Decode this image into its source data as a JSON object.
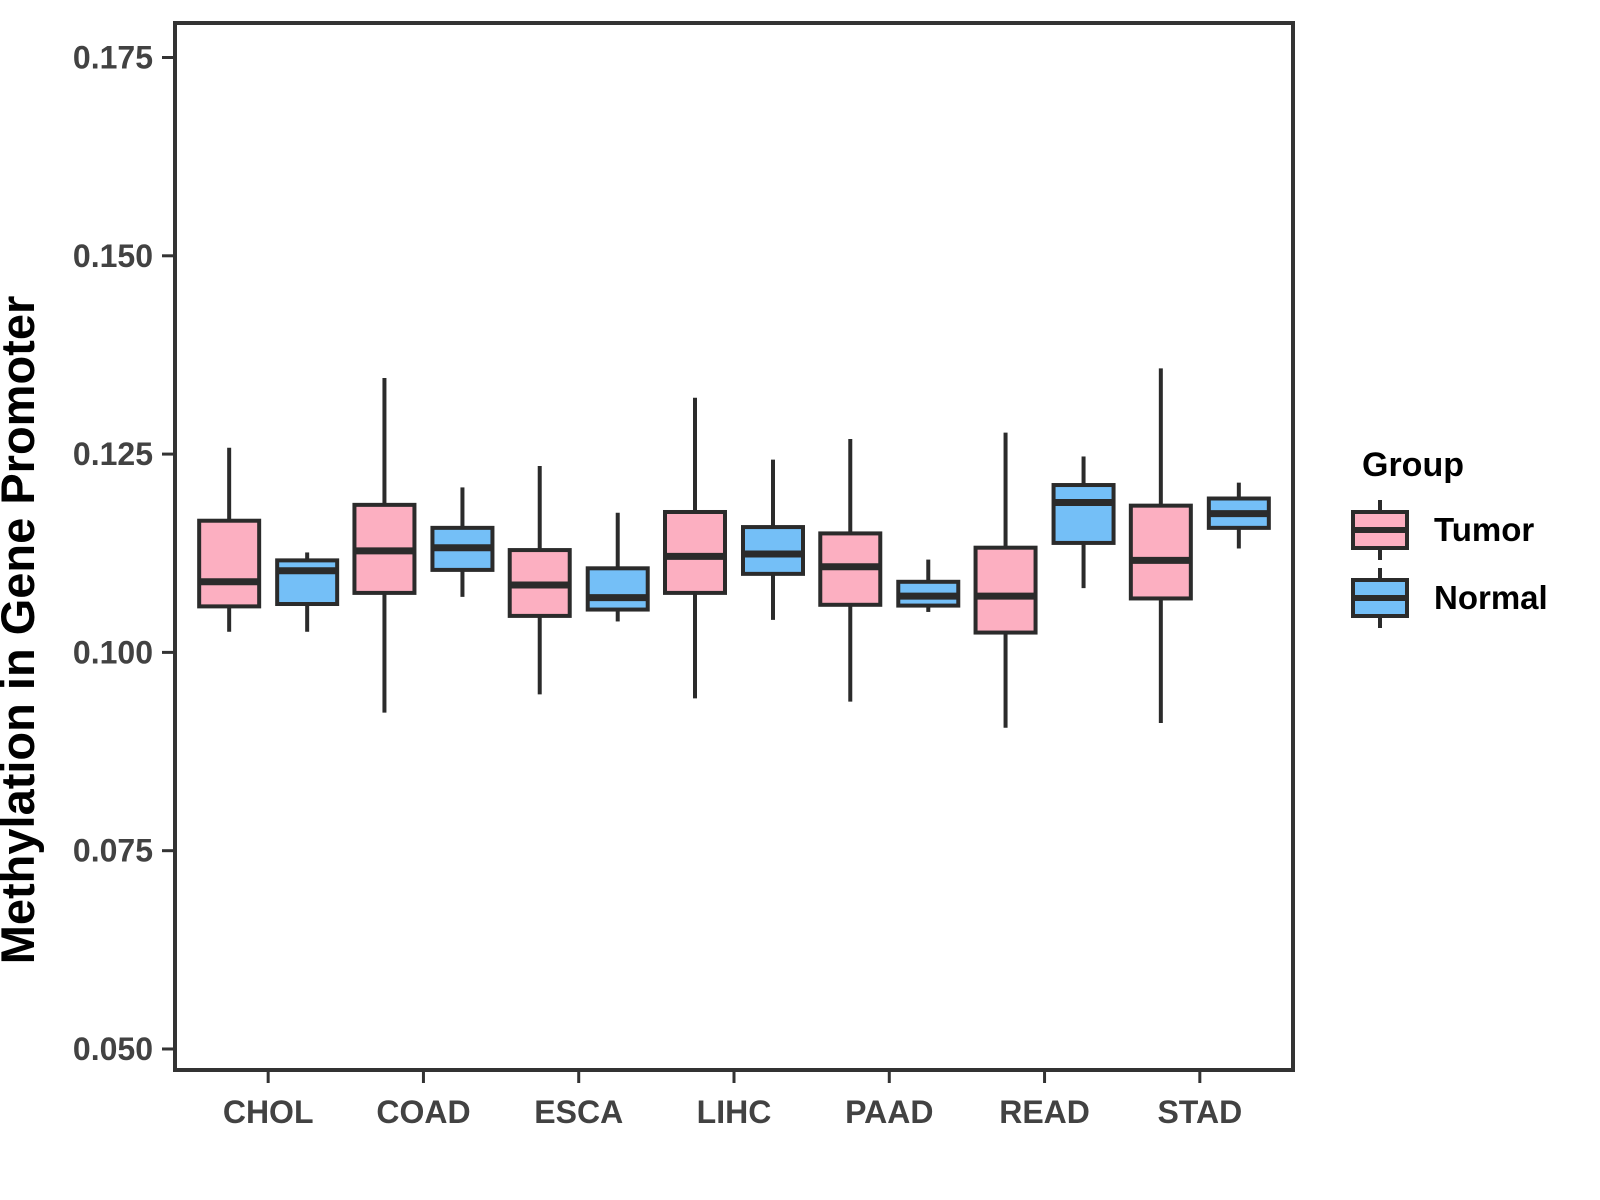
{
  "chart_data": {
    "type": "boxplot",
    "ylabel": "Methylation in Gene Promoter",
    "xlabel": "",
    "categories": [
      "CHOL",
      "COAD",
      "ESCA",
      "LIHC",
      "PAAD",
      "READ",
      "STAD"
    ],
    "y_ticks": [
      "0.050",
      "0.075",
      "0.100",
      "0.125",
      "0.150",
      "0.175"
    ],
    "y_tick_values": [
      0.05,
      0.075,
      0.1,
      0.125,
      0.15,
      0.175
    ],
    "ylim": [
      0.04735,
      0.17935
    ],
    "grid": false,
    "legend": {
      "title": "Group",
      "position": "right",
      "entries": [
        {
          "label": "Tumor",
          "color": "#FCAFC1"
        },
        {
          "label": "Normal",
          "color": "#74BFF7"
        }
      ]
    },
    "series": [
      {
        "name": "Tumor",
        "color": "#FCAFC1",
        "boxes": [
          {
            "category": "CHOL",
            "whisker_low": 0.1026,
            "q1": 0.1058,
            "median": 0.1089,
            "q3": 0.1166,
            "whisker_high": 0.1258
          },
          {
            "category": "COAD",
            "whisker_low": 0.0924,
            "q1": 0.1075,
            "median": 0.1128,
            "q3": 0.1186,
            "whisker_high": 0.1346
          },
          {
            "category": "ESCA",
            "whisker_low": 0.0947,
            "q1": 0.1046,
            "median": 0.1085,
            "q3": 0.1129,
            "whisker_high": 0.1235
          },
          {
            "category": "LIHC",
            "whisker_low": 0.0942,
            "q1": 0.1075,
            "median": 0.1121,
            "q3": 0.1177,
            "whisker_high": 0.1321
          },
          {
            "category": "PAAD",
            "whisker_low": 0.0938,
            "q1": 0.106,
            "median": 0.1108,
            "q3": 0.115,
            "whisker_high": 0.1269
          },
          {
            "category": "READ",
            "whisker_low": 0.0905,
            "q1": 0.1025,
            "median": 0.1071,
            "q3": 0.1132,
            "whisker_high": 0.1277
          },
          {
            "category": "STAD",
            "whisker_low": 0.0911,
            "q1": 0.1068,
            "median": 0.1116,
            "q3": 0.1185,
            "whisker_high": 0.1358
          }
        ]
      },
      {
        "name": "Normal",
        "color": "#74BFF7",
        "boxes": [
          {
            "category": "CHOL",
            "whisker_low": 0.1026,
            "q1": 0.1061,
            "median": 0.1103,
            "q3": 0.1116,
            "whisker_high": 0.1126
          },
          {
            "category": "COAD",
            "whisker_low": 0.107,
            "q1": 0.1104,
            "median": 0.1132,
            "q3": 0.1157,
            "whisker_high": 0.1208
          },
          {
            "category": "ESCA",
            "whisker_low": 0.1039,
            "q1": 0.1054,
            "median": 0.1069,
            "q3": 0.1106,
            "whisker_high": 0.1176
          },
          {
            "category": "LIHC",
            "whisker_low": 0.1041,
            "q1": 0.1099,
            "median": 0.1124,
            "q3": 0.1158,
            "whisker_high": 0.1243
          },
          {
            "category": "PAAD",
            "whisker_low": 0.1051,
            "q1": 0.1059,
            "median": 0.1071,
            "q3": 0.1089,
            "whisker_high": 0.1117
          },
          {
            "category": "READ",
            "whisker_low": 0.1081,
            "q1": 0.1138,
            "median": 0.1189,
            "q3": 0.1211,
            "whisker_high": 0.1247
          },
          {
            "category": "STAD",
            "whisker_low": 0.1131,
            "q1": 0.1157,
            "median": 0.1175,
            "q3": 0.1194,
            "whisker_high": 0.1214
          }
        ]
      }
    ],
    "style": {
      "box_border_color": "#2b2b2b",
      "axis_color": "#333333",
      "tick_label_color": "#424242",
      "title_color": "#000000",
      "panel_background": "#ffffff"
    }
  }
}
